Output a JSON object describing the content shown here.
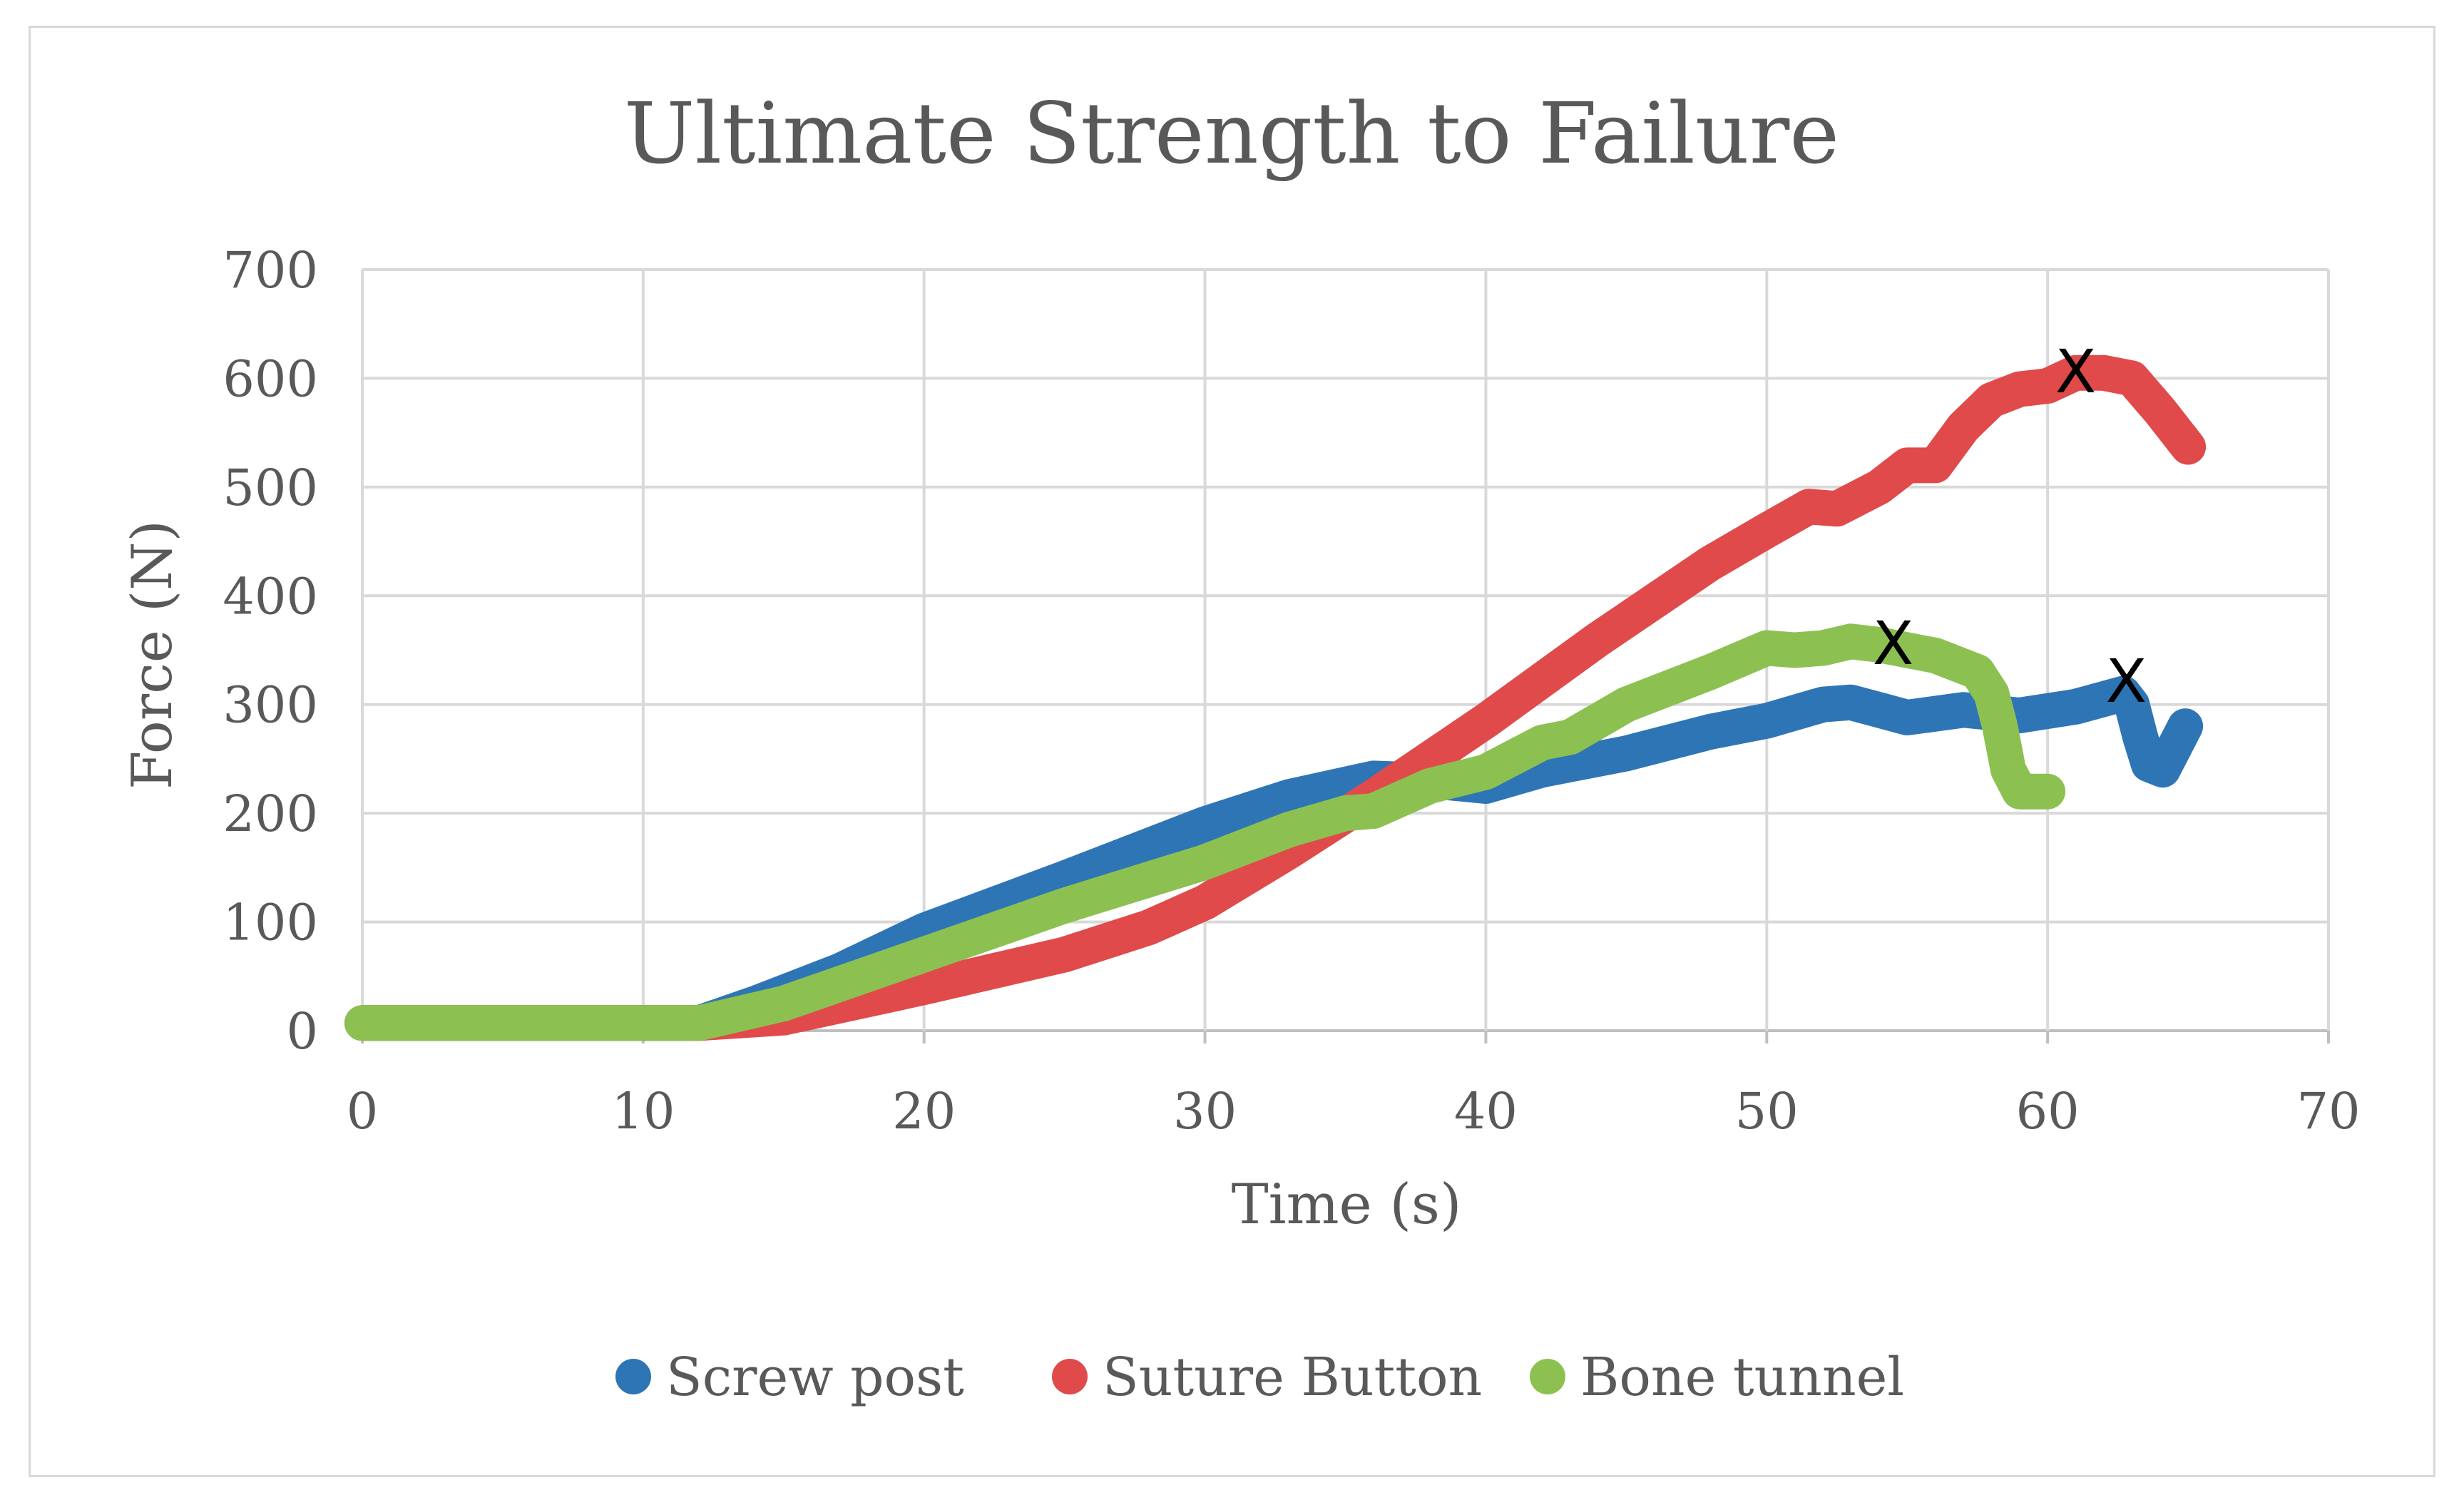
{
  "chart_data": {
    "type": "line",
    "title": "Ultimate Strength to Failure",
    "xlabel": "Time (s)",
    "ylabel": "Force (N)",
    "xlim": [
      0,
      70
    ],
    "ylim": [
      0,
      700
    ],
    "xticks": [
      0,
      10,
      20,
      30,
      40,
      50,
      60,
      70
    ],
    "yticks": [
      0,
      100,
      200,
      300,
      400,
      500,
      600,
      700
    ],
    "grid": true,
    "legend_position": "bottom",
    "failure_marker": "X",
    "series": [
      {
        "name": "Screw post",
        "color": "#2e75b6",
        "points": [
          [
            0,
            7
          ],
          [
            12,
            7
          ],
          [
            14,
            25
          ],
          [
            17,
            55
          ],
          [
            20,
            92
          ],
          [
            25,
            140
          ],
          [
            30,
            190
          ],
          [
            33,
            215
          ],
          [
            36,
            232
          ],
          [
            38,
            230
          ],
          [
            40,
            225
          ],
          [
            42,
            240
          ],
          [
            45,
            255
          ],
          [
            48,
            275
          ],
          [
            50,
            285
          ],
          [
            52,
            300
          ],
          [
            53,
            302
          ],
          [
            55,
            288
          ],
          [
            57,
            295
          ],
          [
            59,
            290
          ],
          [
            61,
            298
          ],
          [
            62.7,
            310
          ],
          [
            63,
            300
          ],
          [
            63.3,
            270
          ],
          [
            63.6,
            245
          ],
          [
            64.1,
            240
          ],
          [
            64.5,
            260
          ],
          [
            64.9,
            280
          ]
        ],
        "failure": [
          62.8,
          322
        ]
      },
      {
        "name": "Suture Button",
        "color": "#e04a4a",
        "points": [
          [
            0,
            7
          ],
          [
            12,
            7
          ],
          [
            15,
            12
          ],
          [
            20,
            40
          ],
          [
            25,
            70
          ],
          [
            28,
            95
          ],
          [
            30,
            118
          ],
          [
            33,
            165
          ],
          [
            36,
            215
          ],
          [
            40,
            285
          ],
          [
            44,
            360
          ],
          [
            48,
            430
          ],
          [
            50,
            460
          ],
          [
            51.5,
            482
          ],
          [
            52.5,
            480
          ],
          [
            54,
            500
          ],
          [
            55,
            520
          ],
          [
            56,
            520
          ],
          [
            57,
            555
          ],
          [
            58,
            580
          ],
          [
            59,
            590
          ],
          [
            60,
            593
          ],
          [
            61,
            605
          ],
          [
            62,
            605
          ],
          [
            63,
            600
          ],
          [
            64,
            570
          ],
          [
            65,
            537
          ]
        ],
        "failure": [
          61,
          607
        ]
      },
      {
        "name": "Bone tunnel",
        "color": "#8cc152",
        "points": [
          [
            0,
            7
          ],
          [
            12,
            7
          ],
          [
            15,
            25
          ],
          [
            20,
            70
          ],
          [
            25,
            115
          ],
          [
            30,
            155
          ],
          [
            33,
            185
          ],
          [
            35,
            200
          ],
          [
            36,
            202
          ],
          [
            38,
            225
          ],
          [
            40,
            238
          ],
          [
            42,
            265
          ],
          [
            43,
            270
          ],
          [
            45,
            300
          ],
          [
            48,
            330
          ],
          [
            50,
            352
          ],
          [
            51,
            350
          ],
          [
            52,
            352
          ],
          [
            53,
            358
          ],
          [
            54,
            355
          ],
          [
            56,
            345
          ],
          [
            57.5,
            330
          ],
          [
            58,
            310
          ],
          [
            58.3,
            280
          ],
          [
            58.6,
            240
          ],
          [
            59,
            220
          ],
          [
            60,
            220
          ]
        ],
        "failure": [
          54.5,
          357
        ]
      }
    ]
  }
}
